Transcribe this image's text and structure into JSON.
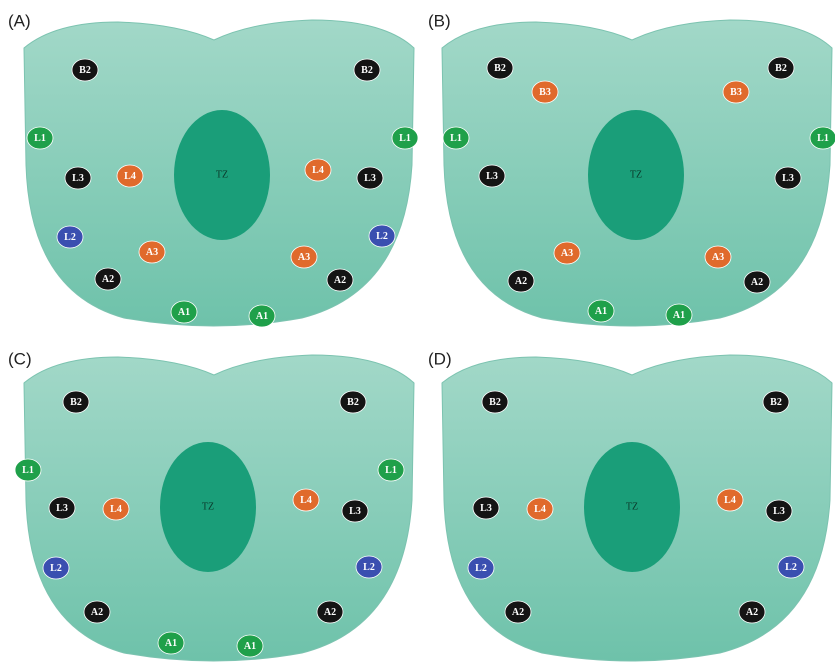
{
  "panels": [
    {
      "label": "(A)",
      "center": "TZ",
      "nodes": [
        {
          "label": "B2",
          "color": "#141414"
        },
        {
          "label": "B2",
          "color": "#141414"
        },
        {
          "label": "L1",
          "color": "#1fa04a"
        },
        {
          "label": "L1",
          "color": "#1fa04a"
        },
        {
          "label": "L3",
          "color": "#141414"
        },
        {
          "label": "L4",
          "color": "#e06a2c"
        },
        {
          "label": "L4",
          "color": "#e06a2c"
        },
        {
          "label": "L3",
          "color": "#141414"
        },
        {
          "label": "L2",
          "color": "#3a4fb0"
        },
        {
          "label": "L2",
          "color": "#3a4fb0"
        },
        {
          "label": "A3",
          "color": "#e06a2c"
        },
        {
          "label": "A3",
          "color": "#e06a2c"
        },
        {
          "label": "A2",
          "color": "#141414"
        },
        {
          "label": "A2",
          "color": "#141414"
        },
        {
          "label": "A1",
          "color": "#1fa04a"
        },
        {
          "label": "A1",
          "color": "#1fa04a"
        }
      ]
    },
    {
      "label": "(B)",
      "center": "TZ",
      "nodes": [
        {
          "label": "B2",
          "color": "#141414"
        },
        {
          "label": "B3",
          "color": "#e06a2c"
        },
        {
          "label": "B3",
          "color": "#e06a2c"
        },
        {
          "label": "B2",
          "color": "#141414"
        },
        {
          "label": "L1",
          "color": "#1fa04a"
        },
        {
          "label": "L1",
          "color": "#1fa04a"
        },
        {
          "label": "L3",
          "color": "#141414"
        },
        {
          "label": "L3",
          "color": "#141414"
        },
        {
          "label": "A3",
          "color": "#e06a2c"
        },
        {
          "label": "A3",
          "color": "#e06a2c"
        },
        {
          "label": "A2",
          "color": "#141414"
        },
        {
          "label": "A2",
          "color": "#141414"
        },
        {
          "label": "A1",
          "color": "#1fa04a"
        },
        {
          "label": "A1",
          "color": "#1fa04a"
        }
      ]
    },
    {
      "label": "(C)",
      "center": "TZ",
      "nodes": [
        {
          "label": "B2",
          "color": "#141414"
        },
        {
          "label": "B2",
          "color": "#141414"
        },
        {
          "label": "L1",
          "color": "#1fa04a"
        },
        {
          "label": "L1",
          "color": "#1fa04a"
        },
        {
          "label": "L3",
          "color": "#141414"
        },
        {
          "label": "L4",
          "color": "#e06a2c"
        },
        {
          "label": "L4",
          "color": "#e06a2c"
        },
        {
          "label": "L3",
          "color": "#141414"
        },
        {
          "label": "L2",
          "color": "#3a4fb0"
        },
        {
          "label": "L2",
          "color": "#3a4fb0"
        },
        {
          "label": "A2",
          "color": "#141414"
        },
        {
          "label": "A2",
          "color": "#141414"
        },
        {
          "label": "A1",
          "color": "#1fa04a"
        },
        {
          "label": "A1",
          "color": "#1fa04a"
        }
      ]
    },
    {
      "label": "(D)",
      "center": "TZ",
      "nodes": [
        {
          "label": "B2",
          "color": "#141414"
        },
        {
          "label": "B2",
          "color": "#141414"
        },
        {
          "label": "L3",
          "color": "#141414"
        },
        {
          "label": "L4",
          "color": "#e06a2c"
        },
        {
          "label": "L4",
          "color": "#e06a2c"
        },
        {
          "label": "L3",
          "color": "#141414"
        },
        {
          "label": "L2",
          "color": "#3a4fb0"
        },
        {
          "label": "L2",
          "color": "#3a4fb0"
        },
        {
          "label": "A2",
          "color": "#141414"
        },
        {
          "label": "A2",
          "color": "#141414"
        }
      ]
    }
  ]
}
